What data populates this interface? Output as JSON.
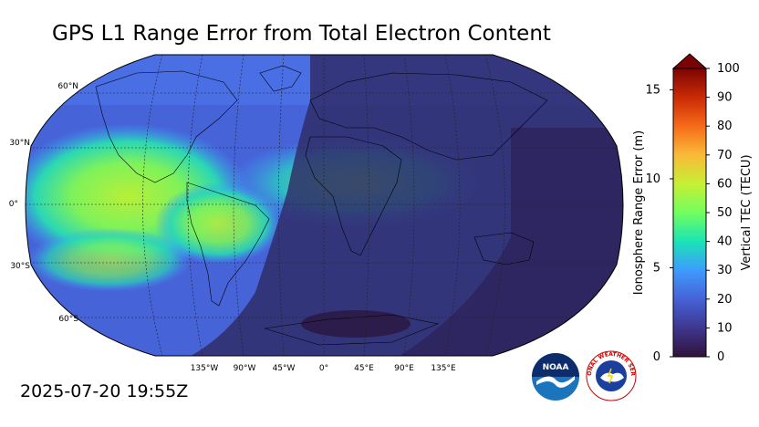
{
  "header": {
    "title": "GPS L1 Range Error from Total Electron Content"
  },
  "footer": {
    "timestamp": "2025-07-20 19:55Z"
  },
  "map": {
    "lat_labels": [
      "60°N",
      "30°N",
      "0°",
      "30°S",
      "60°S"
    ],
    "lon_labels": [
      "135°W",
      "90°W",
      "45°W",
      "0°",
      "45°E",
      "90°E",
      "135°E"
    ],
    "projection": "robinson"
  },
  "colorbar": {
    "left_label": "Ionosphere Range Error (m)",
    "left_ticks": [
      "0",
      "5",
      "10",
      "15"
    ],
    "right_label": "Vertical TEC (TECU)",
    "right_ticks": [
      "0",
      "10",
      "20",
      "30",
      "40",
      "50",
      "60",
      "70",
      "80",
      "90",
      "100"
    ],
    "extend": "max",
    "colors": [
      "#30123b",
      "#3e378f",
      "#4662d7",
      "#3e9bfe",
      "#1ae4b6",
      "#72fe5e",
      "#c7ef34",
      "#faba39",
      "#f66b19",
      "#ca2a04",
      "#7a0403"
    ]
  },
  "logos": {
    "noaa_text": "NOAA",
    "nws_text": "NATIONAL WEATHER SERVICE"
  }
}
